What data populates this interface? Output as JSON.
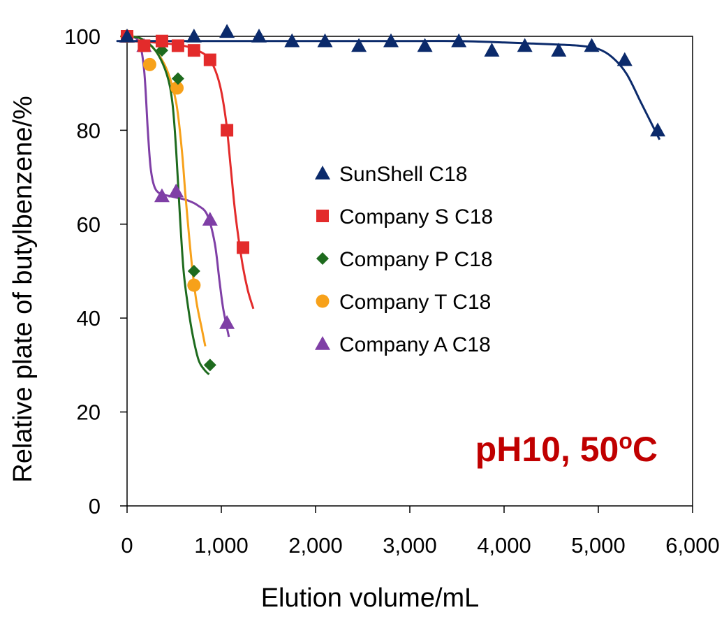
{
  "chart_data": {
    "type": "scatter",
    "title": "",
    "xlabel": "Elution volume/mL",
    "ylabel": "Relative plate of butylbenzene/%",
    "xlim": [
      0,
      6000
    ],
    "ylim": [
      0,
      100
    ],
    "x_ticks": [
      0,
      1000,
      2000,
      3000,
      4000,
      5000,
      6000
    ],
    "x_tick_labels": [
      "0",
      "1,000",
      "2,000",
      "3,000",
      "4,000",
      "5,000",
      "6,000"
    ],
    "y_ticks": [
      0,
      20,
      40,
      60,
      80,
      100
    ],
    "y_tick_labels": [
      "0",
      "20",
      "40",
      "60",
      "80",
      "100"
    ],
    "grid": false,
    "legend_position": "center",
    "annotation": {
      "text": "pH10, 50",
      "superscript": "o",
      "suffix": "C",
      "color": "#c00000"
    },
    "series": [
      {
        "name": "SunShell C18",
        "color": "#0b2a6b",
        "marker": "triangle",
        "x": [
          0,
          710,
          1060,
          1400,
          1750,
          2100,
          2460,
          2800,
          3160,
          3520,
          3870,
          4220,
          4580,
          4930,
          5280,
          5630
        ],
        "y": [
          100,
          100,
          101,
          100,
          99,
          99,
          98,
          99,
          98,
          99,
          97,
          98,
          97,
          98,
          95,
          80
        ],
        "fit_x": [
          -80,
          0,
          1000,
          2000,
          3000,
          3500,
          4000,
          4500,
          4800,
          5000,
          5150,
          5300,
          5450,
          5550,
          5650
        ],
        "fit_y": [
          99,
          99,
          99,
          99,
          99,
          99,
          98.7,
          98.3,
          98,
          97.3,
          95.5,
          92,
          86,
          82,
          78
        ]
      },
      {
        "name": "Company S C18",
        "color": "#e32b2b",
        "marker": "square",
        "x": [
          0,
          180,
          370,
          540,
          710,
          880,
          1060,
          1230
        ],
        "y": [
          100,
          98,
          99,
          98,
          97,
          95,
          80,
          55
        ],
        "fit_x": [
          -80,
          0,
          200,
          400,
          600,
          750,
          880,
          980,
          1050,
          1100,
          1150,
          1220,
          1280,
          1340
        ],
        "fit_y": [
          99,
          99,
          98.8,
          98.5,
          98,
          97,
          95,
          90,
          82,
          72,
          62,
          52,
          46,
          42
        ]
      },
      {
        "name": "Company P C18",
        "color": "#1e6b1e",
        "marker": "diamond",
        "x": [
          0,
          180,
          370,
          540,
          710,
          880
        ],
        "y": [
          100,
          98,
          97,
          91,
          50,
          30
        ],
        "fit_x": [
          0,
          150,
          300,
          420,
          480,
          520,
          560,
          600,
          650,
          700,
          760,
          820,
          870
        ],
        "fit_y": [
          100,
          99.5,
          97,
          92,
          86,
          76,
          62,
          50,
          42,
          36,
          31,
          29,
          28
        ]
      },
      {
        "name": "Company T C18",
        "color": "#f7a11a",
        "marker": "circle",
        "x": [
          0,
          240,
          530,
          710
        ],
        "y": [
          100,
          94,
          89,
          47
        ],
        "fit_x": [
          0,
          150,
          300,
          420,
          520,
          580,
          620,
          660,
          700,
          740,
          790,
          830
        ],
        "fit_y": [
          100,
          99.5,
          97,
          93,
          86,
          76,
          66,
          57,
          49,
          43,
          38,
          34
        ]
      },
      {
        "name": "Company A C18",
        "color": "#7f3fa6",
        "marker": "triangle",
        "x": [
          0,
          180,
          370,
          520,
          880,
          1060
        ],
        "y": [
          100,
          98,
          66,
          67,
          61,
          39
        ],
        "fit_x": [
          0,
          120,
          180,
          220,
          250,
          290,
          350,
          450,
          560,
          650,
          750,
          850,
          930,
          980,
          1020,
          1080
        ],
        "fit_y": [
          100,
          99,
          93,
          80,
          72,
          68,
          66.5,
          66,
          65.5,
          65,
          64,
          62,
          56,
          48,
          42,
          36
        ]
      }
    ]
  }
}
